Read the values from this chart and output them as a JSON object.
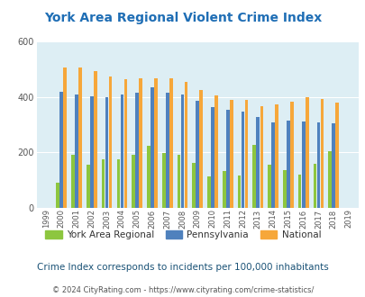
{
  "title": "York Area Regional Violent Crime Index",
  "years": [
    1999,
    2000,
    2001,
    2002,
    2003,
    2004,
    2005,
    2006,
    2007,
    2008,
    2009,
    2010,
    2011,
    2012,
    2013,
    2014,
    2015,
    2016,
    2017,
    2018,
    2019
  ],
  "york": [
    null,
    90,
    190,
    155,
    175,
    175,
    190,
    225,
    198,
    193,
    163,
    115,
    133,
    118,
    228,
    155,
    137,
    120,
    160,
    205,
    null
  ],
  "pennsylvania": [
    null,
    420,
    408,
    402,
    400,
    410,
    415,
    435,
    415,
    408,
    385,
    363,
    353,
    347,
    327,
    307,
    315,
    313,
    310,
    305,
    null
  ],
  "national": [
    null,
    507,
    507,
    495,
    475,
    463,
    466,
    468,
    467,
    456,
    425,
    405,
    388,
    388,
    368,
    374,
    383,
    399,
    394,
    381,
    null
  ],
  "york_color": "#8dc63f",
  "pennsylvania_color": "#4f81bd",
  "national_color": "#f6a73a",
  "background_color": "#ddeef4",
  "outer_background": "#ffffff",
  "ylim": [
    0,
    600
  ],
  "yticks": [
    0,
    200,
    400,
    600
  ],
  "footnote": "Crime Index corresponds to incidents per 100,000 inhabitants",
  "copyright": "© 2024 CityRating.com - https://www.cityrating.com/crime-statistics/",
  "title_color": "#1f6eb5",
  "footnote_color": "#1a5276",
  "copyright_color": "#555555",
  "legend_label_color": "#333333"
}
